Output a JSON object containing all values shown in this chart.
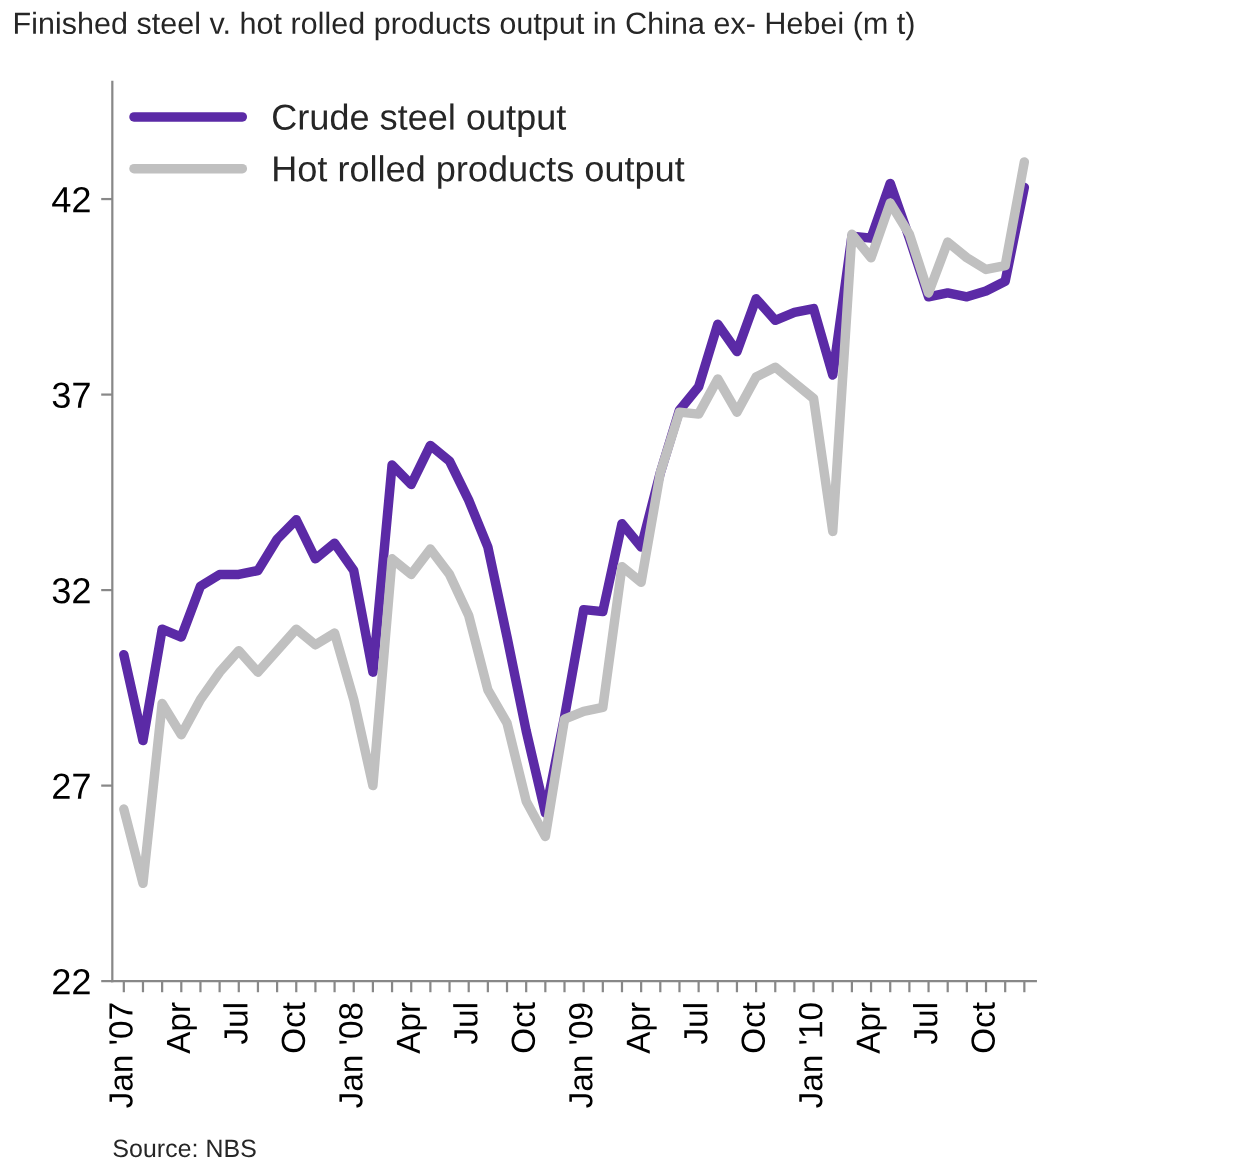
{
  "chart_data": {
    "type": "line",
    "title": "Finished steel v. hot rolled products output in China ex- Hebei (m t)",
    "categories": [
      "Jan '07",
      null,
      null,
      "Apr",
      null,
      null,
      "Jul",
      null,
      null,
      "Oct",
      null,
      null,
      "Jan '08",
      null,
      null,
      "Apr",
      null,
      null,
      "Jul",
      null,
      null,
      "Oct",
      null,
      null,
      "Jan '09",
      null,
      null,
      "Apr",
      null,
      null,
      "Jul",
      null,
      null,
      "Oct",
      null,
      null,
      "Jan '10",
      null,
      null,
      "Apr",
      null,
      null,
      "Jul",
      null,
      null,
      "Oct",
      null,
      null
    ],
    "series": [
      {
        "name": "Crude steel output",
        "color": "#5b2aa6",
        "values": [
          30.35,
          28.15,
          31.0,
          30.8,
          32.1,
          32.4,
          32.4,
          32.5,
          33.3,
          33.8,
          32.8,
          33.2,
          32.5,
          29.9,
          35.2,
          34.7,
          35.7,
          35.3,
          34.3,
          33.1,
          30.8,
          28.4,
          26.3,
          28.75,
          31.5,
          31.45,
          33.7,
          33.1,
          35.0,
          36.6,
          37.2,
          38.8,
          38.1,
          39.45,
          38.9,
          39.1,
          39.2,
          37.5,
          41.05,
          41.0,
          42.4,
          41.0,
          39.5,
          39.6,
          39.5,
          39.65,
          39.9,
          42.3
        ]
      },
      {
        "name": "Hot rolled products output",
        "color": "#c0c0c0",
        "values": [
          26.4,
          24.5,
          29.1,
          28.3,
          29.2,
          29.9,
          30.45,
          29.9,
          30.45,
          31.0,
          30.6,
          30.9,
          29.2,
          27.0,
          32.8,
          32.4,
          33.05,
          32.4,
          31.35,
          29.45,
          28.6,
          26.6,
          25.7,
          28.7,
          28.9,
          29.0,
          32.6,
          32.2,
          35.0,
          36.55,
          36.5,
          37.4,
          36.55,
          37.45,
          37.7,
          37.3,
          36.9,
          33.5,
          41.1,
          40.5,
          41.9,
          41.1,
          39.6,
          40.9,
          40.5,
          40.2,
          40.3,
          42.95
        ]
      }
    ],
    "ylim": [
      22,
      45
    ],
    "yticks": [
      22,
      27,
      32,
      37,
      42
    ],
    "legend": "top left",
    "grid": false,
    "annotations": [
      "Source: NBS"
    ]
  }
}
